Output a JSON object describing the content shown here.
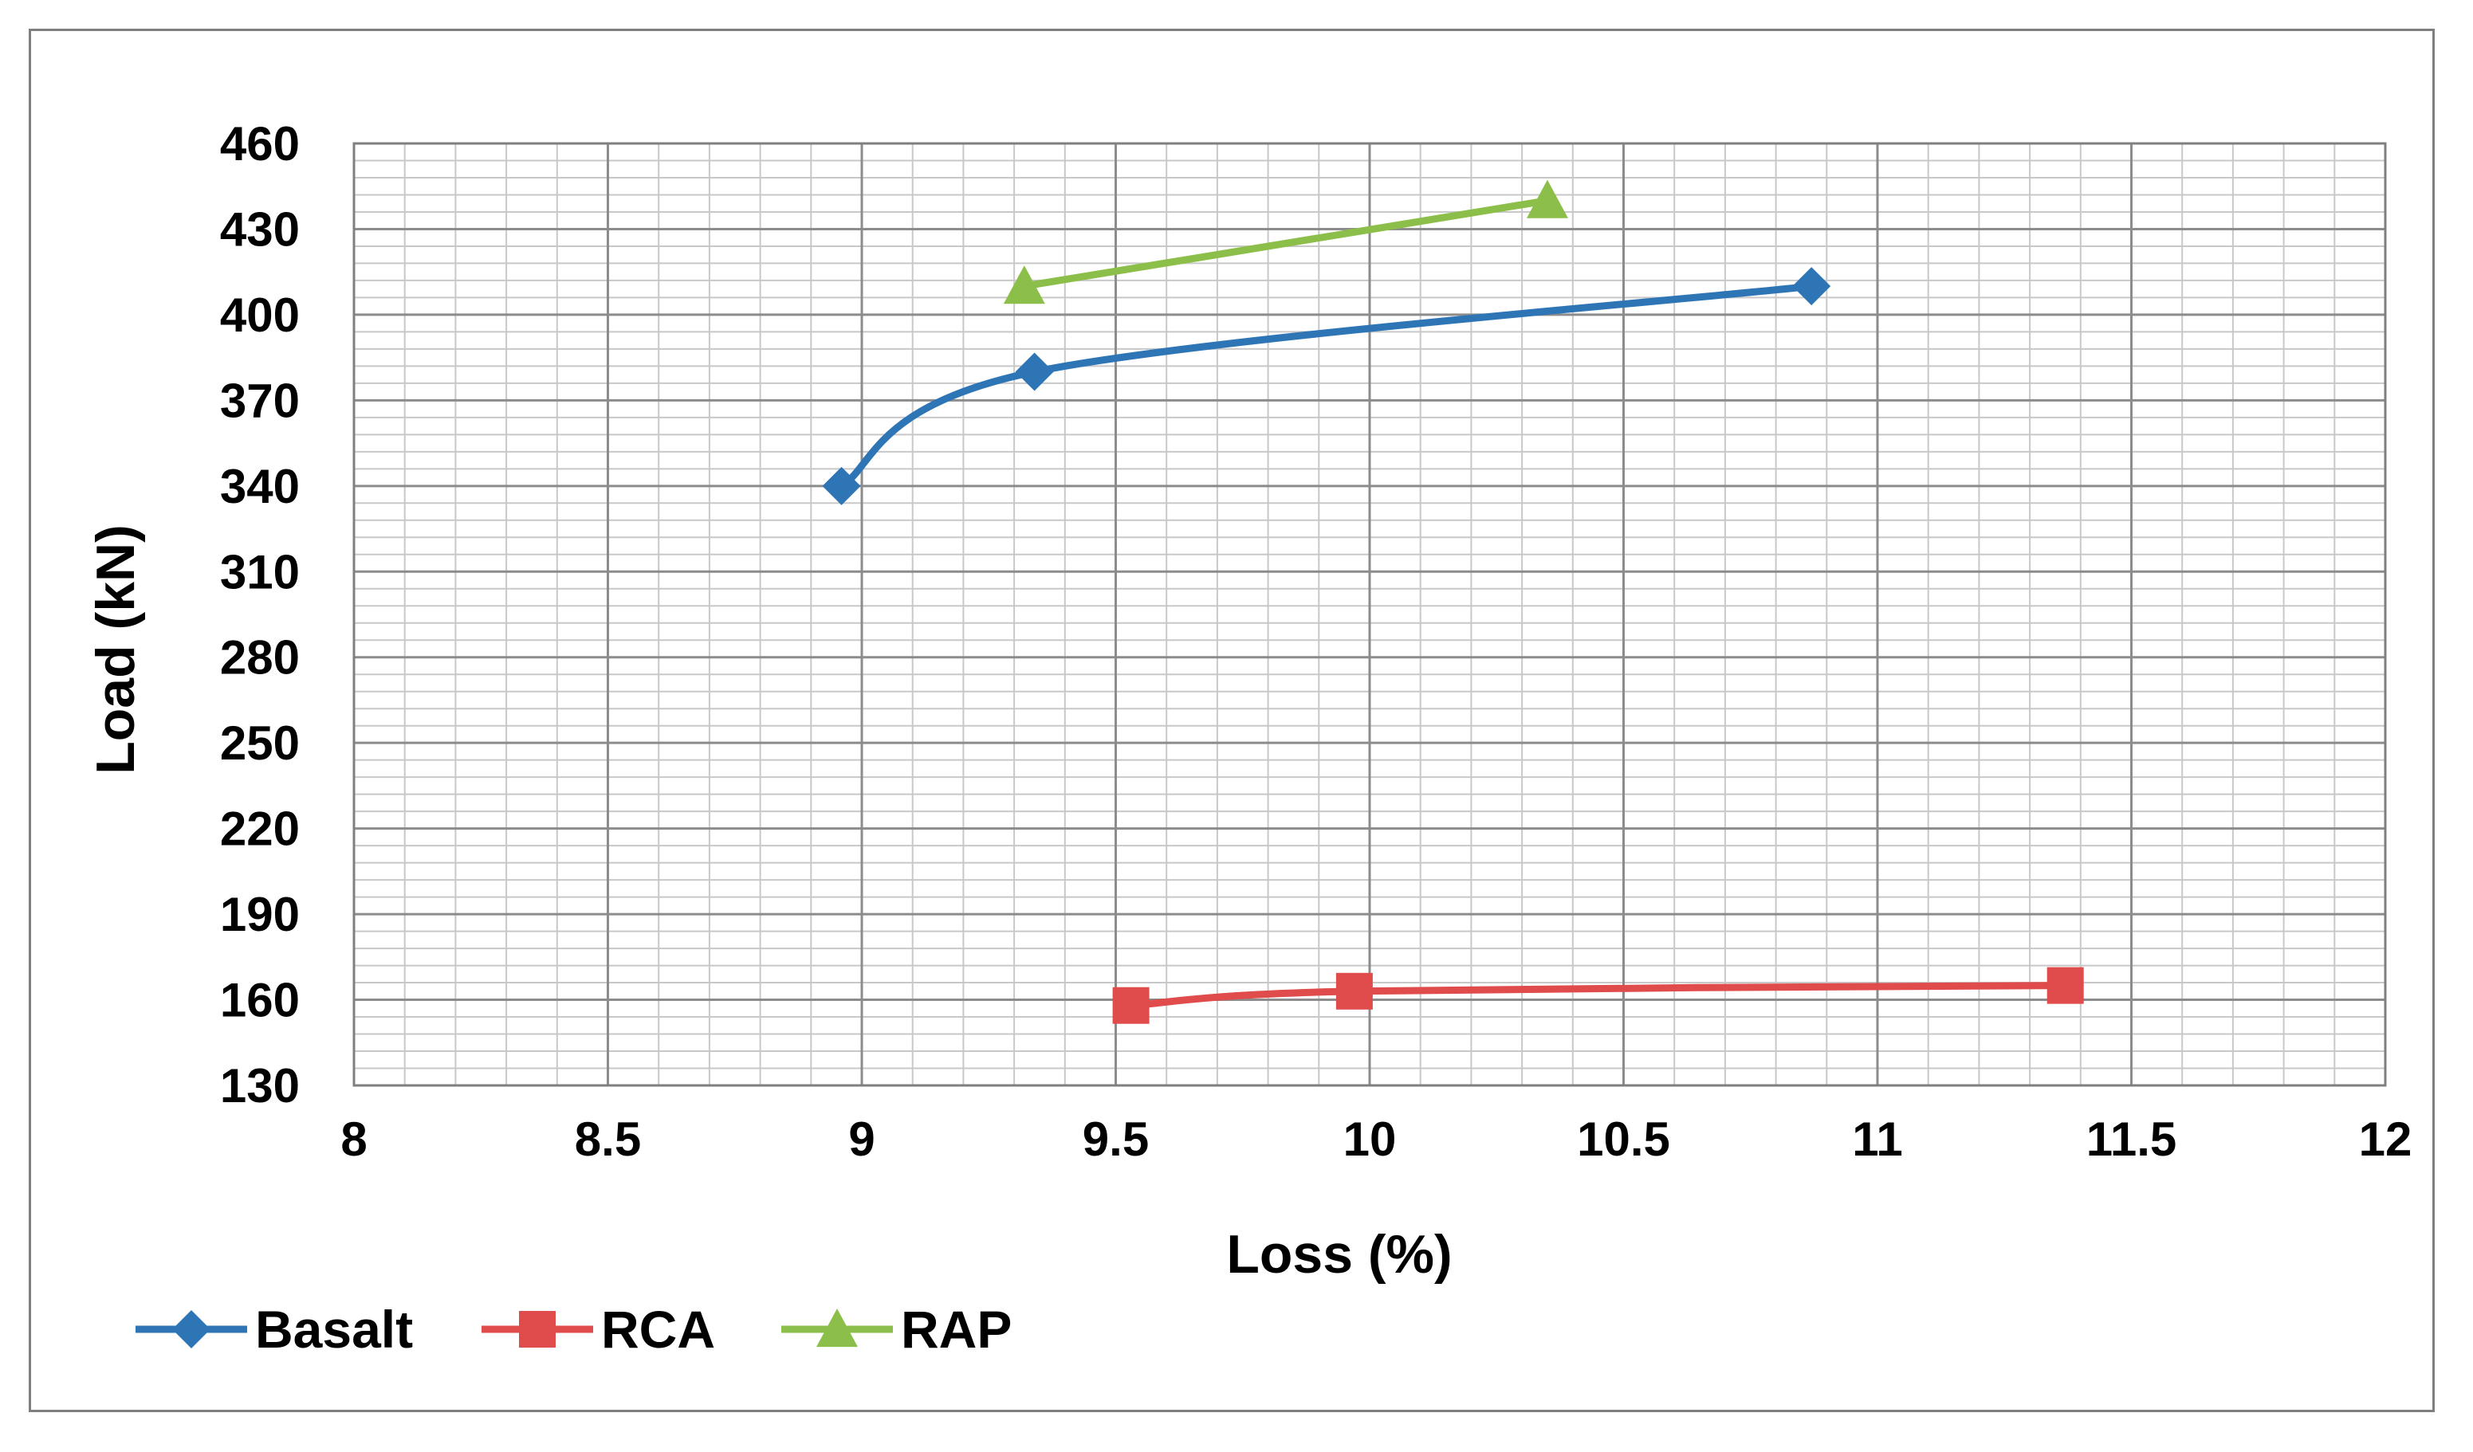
{
  "chart_data": {
    "type": "line",
    "title": "",
    "xlabel": "Loss (%)",
    "ylabel": "Load (kN)",
    "xlim": [
      8,
      12
    ],
    "ylim": [
      130,
      460
    ],
    "xticks": [
      "8",
      "8.5",
      "9",
      "9.5",
      "10",
      "10.5",
      "11",
      "11.5",
      "12"
    ],
    "yticks": [
      "130",
      "160",
      "190",
      "220",
      "250",
      "280",
      "310",
      "340",
      "370",
      "400",
      "430",
      "460"
    ],
    "grid": true,
    "legend_position": "bottom-left",
    "series": [
      {
        "name": "Basalt",
        "color": "#2E75B6",
        "marker": "diamond",
        "smooth": true,
        "points": [
          {
            "x": 8.96,
            "y": 340
          },
          {
            "x": 9.34,
            "y": 380
          },
          {
            "x": 10.87,
            "y": 410
          }
        ]
      },
      {
        "name": "RCA",
        "color": "#E04B4B",
        "marker": "square",
        "smooth": true,
        "points": [
          {
            "x": 9.53,
            "y": 158
          },
          {
            "x": 9.97,
            "y": 163
          },
          {
            "x": 11.37,
            "y": 165
          }
        ]
      },
      {
        "name": "RAP",
        "color": "#8CBF4A",
        "marker": "triangle",
        "smooth": false,
        "points": [
          {
            "x": 9.32,
            "y": 410
          },
          {
            "x": 10.35,
            "y": 440
          }
        ]
      }
    ]
  }
}
